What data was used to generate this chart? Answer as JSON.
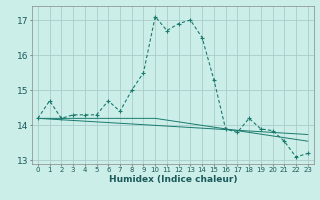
{
  "title": "",
  "xlabel": "Humidex (Indice chaleur)",
  "background_color": "#cceee8",
  "line_color": "#1a7a6e",
  "grid_color": "#aacccc",
  "x_values": [
    0,
    1,
    2,
    3,
    4,
    5,
    6,
    7,
    8,
    9,
    10,
    11,
    12,
    13,
    14,
    15,
    16,
    17,
    18,
    19,
    20,
    21,
    22,
    23
  ],
  "y_main": [
    14.2,
    14.7,
    14.2,
    14.3,
    14.3,
    14.3,
    14.7,
    14.4,
    15.0,
    15.5,
    17.1,
    16.7,
    16.9,
    17.0,
    16.5,
    15.3,
    13.9,
    13.8,
    14.2,
    13.9,
    13.85,
    13.55,
    13.1,
    13.2
  ],
  "y_trend1": [
    14.2,
    14.2,
    14.2,
    14.2,
    14.2,
    14.2,
    14.2,
    14.2,
    14.2,
    14.2,
    14.2,
    14.15,
    14.1,
    14.05,
    14.0,
    13.95,
    13.9,
    13.85,
    13.8,
    13.75,
    13.7,
    13.65,
    13.6,
    13.55
  ],
  "y_trend2": [
    14.2,
    14.18,
    14.16,
    14.14,
    14.12,
    14.1,
    14.08,
    14.06,
    14.04,
    14.02,
    14.0,
    13.98,
    13.96,
    13.94,
    13.92,
    13.9,
    13.88,
    13.86,
    13.84,
    13.82,
    13.8,
    13.78,
    13.76,
    13.74
  ],
  "ylim": [
    12.9,
    17.4
  ],
  "xlim": [
    -0.5,
    23.5
  ],
  "yticks": [
    13,
    14,
    15,
    16,
    17
  ],
  "xticks": [
    0,
    1,
    2,
    3,
    4,
    5,
    6,
    7,
    8,
    9,
    10,
    11,
    12,
    13,
    14,
    15,
    16,
    17,
    18,
    19,
    20,
    21,
    22,
    23
  ],
  "xlabel_fontsize": 6.5,
  "ytick_fontsize": 6.5,
  "xtick_fontsize": 5.0
}
